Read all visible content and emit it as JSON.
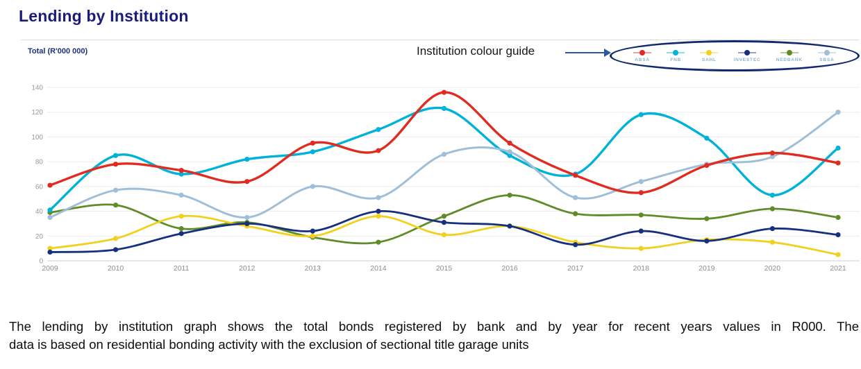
{
  "title": "Lending by Institution",
  "chart_header": {
    "y_axis_title": "Total (R'000 000)",
    "legend_caption": "Institution colour guide"
  },
  "legend": {
    "items": [
      {
        "label": "ABSA",
        "color": "#e02b20"
      },
      {
        "label": "FNB",
        "color": "#00b2d8"
      },
      {
        "label": "SAHL",
        "color": "#f2d01f"
      },
      {
        "label": "INVESTEC",
        "color": "#16307d"
      },
      {
        "label": "NEDBANK",
        "color": "#5f8c28"
      },
      {
        "label": "SBSA",
        "color": "#9fbfd8"
      }
    ]
  },
  "chart_data": {
    "type": "line",
    "title": "Lending by Institution",
    "ylabel": "Total (R'000 000)",
    "x": [
      "2009",
      "2010",
      "2011",
      "2012",
      "2013",
      "2014",
      "2015",
      "2016",
      "2017",
      "2018",
      "2019",
      "2020",
      "2021"
    ],
    "ylim": [
      0,
      140
    ],
    "ytick_step": 20,
    "grid": "horizontal",
    "legend_position": "top-right-ellipse",
    "series": [
      {
        "name": "ABSA",
        "color": "#e02b20",
        "width": 3.4,
        "values": [
          61,
          78,
          73,
          64,
          95,
          89,
          136,
          95,
          69,
          55,
          77,
          87,
          79
        ]
      },
      {
        "name": "FNB",
        "color": "#00b2d8",
        "width": 3.4,
        "values": [
          41,
          85,
          70,
          82,
          88,
          106,
          123,
          85,
          70,
          118,
          99,
          53,
          91
        ]
      },
      {
        "name": "SAHL",
        "color": "#f2d01f",
        "width": 2.8,
        "values": [
          10,
          18,
          36,
          28,
          20,
          36,
          21,
          28,
          15,
          10,
          17,
          15,
          5
        ]
      },
      {
        "name": "INVESTEC",
        "color": "#16307d",
        "width": 2.8,
        "values": [
          7,
          9,
          22,
          30,
          24,
          40,
          31,
          28,
          13,
          24,
          16,
          26,
          21
        ]
      },
      {
        "name": "NEDBANK",
        "color": "#5f8c28",
        "width": 2.8,
        "values": [
          39,
          45,
          26,
          31,
          19,
          15,
          36,
          53,
          38,
          37,
          34,
          42,
          35
        ]
      },
      {
        "name": "SBSA",
        "color": "#9fbfd8",
        "width": 3.0,
        "values": [
          35,
          57,
          53,
          35,
          60,
          51,
          86,
          88,
          51,
          64,
          78,
          84,
          120
        ]
      }
    ]
  },
  "axis_style": {
    "grid_color": "#ececec",
    "baseline_color": "#cfcfcf",
    "tick_label_color": "#8c8c8c"
  },
  "description": {
    "lines": [
      "The lending by institution graph shows the total bonds registered by bank and by year for recent years values in R000. The",
      "data is based on residential bonding activity with the exclusion of sectional title garage units"
    ]
  }
}
